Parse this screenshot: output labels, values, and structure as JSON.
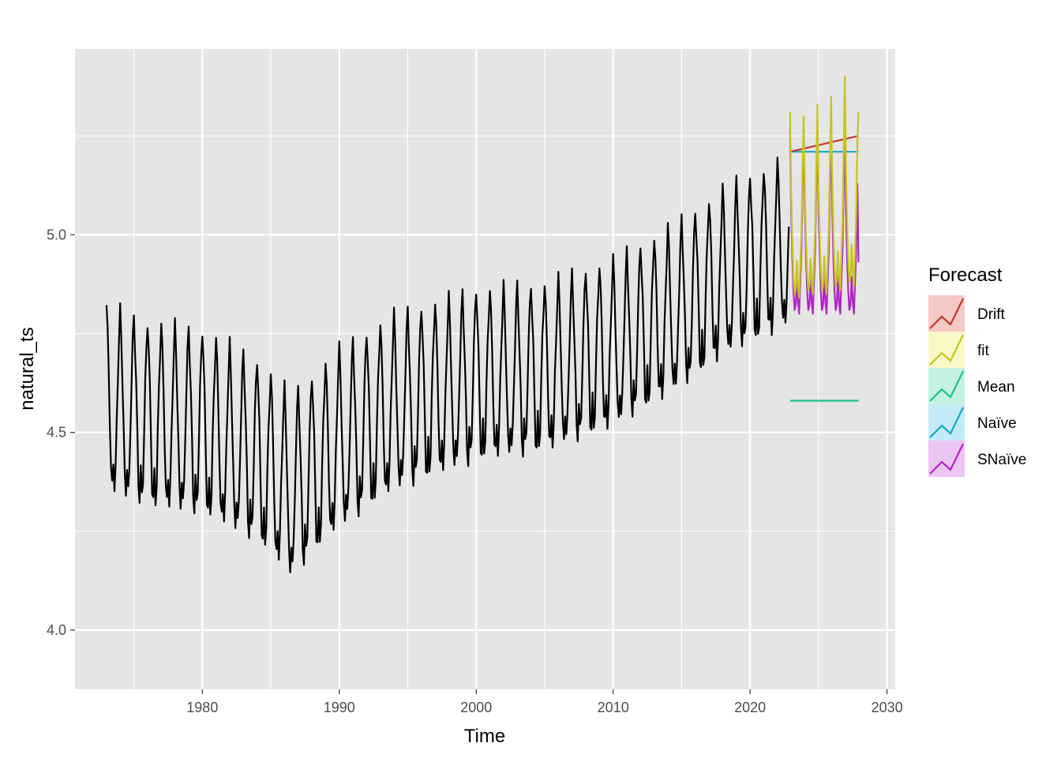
{
  "chart_data": {
    "type": "line",
    "xlabel": "Time",
    "ylabel": "natural_ts",
    "xlim": [
      1970.7,
      2030.6
    ],
    "ylim": [
      3.85,
      5.47
    ],
    "x_ticks": [
      1980,
      1990,
      2000,
      2010,
      2020,
      2030
    ],
    "x_tick_labels": [
      "1980",
      "1990",
      "2000",
      "2010",
      "2020",
      "2030"
    ],
    "y_ticks": [
      4.0,
      4.5,
      5.0
    ],
    "y_tick_labels": [
      "4.0",
      "4.5",
      "5.0"
    ],
    "grid": true,
    "legend": {
      "title": "Forecast",
      "position": "right",
      "entries": [
        "Drift",
        "fit",
        "Mean",
        "Naïve",
        "SNaïve"
      ]
    },
    "colors": {
      "history": "#000000",
      "Drift": "#c03a2e",
      "fit": "#c5c520",
      "Mean": "#1fbf8f",
      "Naïve": "#17a6c9",
      "SNaïve": "#b025c4",
      "panel": "#e5e5e5",
      "grid": "#ffffff"
    },
    "series": [
      {
        "name": "history",
        "kind": "monthly",
        "start": 1973.0,
        "step": 0.08333,
        "months": [
          "Jan",
          "Feb",
          "Mar",
          "Apr",
          "May",
          "Jun",
          "Jul",
          "Aug",
          "Sep",
          "Oct",
          "Nov",
          "Dec"
        ],
        "pattern": [
          0.23,
          0.16,
          0.07,
          -0.05,
          -0.17,
          -0.2,
          -0.13,
          -0.2,
          -0.16,
          -0.04,
          0.07,
          0.16
        ],
        "level_years": [
          1973,
          1976,
          1980,
          1984,
          1986.5,
          1990,
          1994,
          2000,
          2005,
          2010,
          2015,
          2018,
          2022.9
        ],
        "level_values": [
          4.58,
          4.54,
          4.52,
          4.45,
          4.36,
          4.48,
          4.57,
          4.64,
          4.66,
          4.72,
          4.82,
          4.9,
          4.98
        ]
      },
      {
        "name": "Drift",
        "x": [
          2022.92,
          2027.92
        ],
        "y": [
          5.21,
          5.25
        ]
      },
      {
        "name": "Naïve",
        "x": [
          2022.92,
          2027.92
        ],
        "y": [
          5.21,
          5.21
        ]
      },
      {
        "name": "Mean",
        "x": [
          2022.92,
          2027.92
        ],
        "y": [
          4.58,
          4.58
        ]
      },
      {
        "name": "fit",
        "kind": "monthly",
        "start": 2022.92,
        "step": 0.08333,
        "months": 61,
        "peaks": [
          5.31,
          5.3,
          5.33,
          5.35,
          5.4
        ],
        "troughs": [
          4.84,
          4.85,
          4.85,
          4.86,
          4.87
        ],
        "end": 5.31
      },
      {
        "name": "SNaïve",
        "kind": "monthly",
        "start": 2022.92,
        "step": 0.08333,
        "months": 61,
        "peaks": [
          5.27,
          5.27,
          5.27,
          5.27,
          5.27
        ],
        "troughs": [
          4.8,
          4.8,
          4.8,
          4.8,
          4.8
        ],
        "end": 4.93
      }
    ]
  }
}
